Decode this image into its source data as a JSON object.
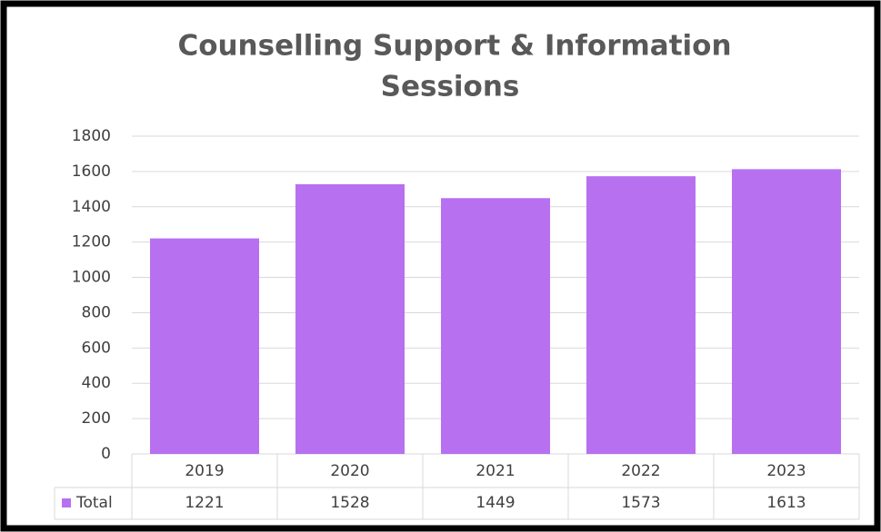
{
  "chart_data": {
    "type": "bar",
    "title": [
      "Counselling Support & Information",
      "Sessions"
    ],
    "categories": [
      "2019",
      "2020",
      "2021",
      "2022",
      "2023"
    ],
    "series": [
      {
        "name": "Total",
        "color": "#b771f0",
        "values": [
          1221,
          1528,
          1449,
          1573,
          1613
        ]
      }
    ],
    "ylim": [
      0,
      1800
    ],
    "yticks": [
      0,
      200,
      400,
      600,
      800,
      1000,
      1200,
      1400,
      1600,
      1800
    ],
    "grid": true,
    "data_table": true
  }
}
